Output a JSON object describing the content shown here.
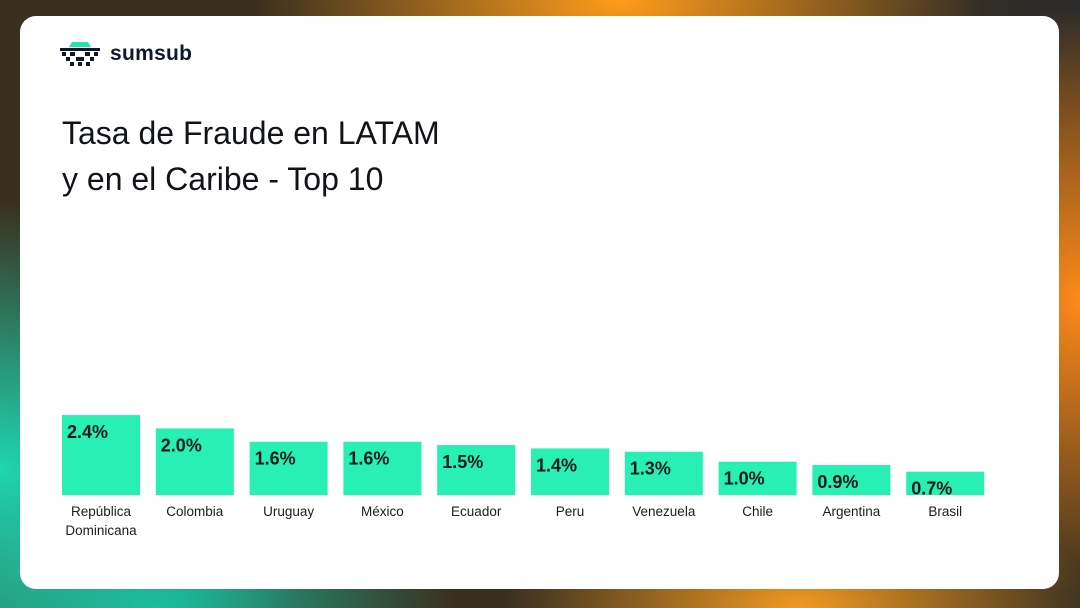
{
  "brand": {
    "name": "sumsub",
    "icon": "sumsub-logo-icon"
  },
  "title_lines": [
    "Tasa de Fraude en LATAM",
    "y en el Caribe - Top 10"
  ],
  "colors": {
    "bar": "#28f0b4",
    "text": "#101418"
  },
  "chart_data": {
    "type": "bar",
    "title": "Tasa de Fraude en LATAM y en el Caribe - Top 10",
    "categories": [
      "República Dominicana",
      "Colombia",
      "Uruguay",
      "México",
      "Ecuador",
      "Peru",
      "Venezuela",
      "Chile",
      "Argentina",
      "Brasil"
    ],
    "category_label_lines": [
      [
        "República",
        "Dominicana"
      ],
      [
        "Colombia"
      ],
      [
        "Uruguay"
      ],
      [
        "México"
      ],
      [
        "Ecuador"
      ],
      [
        "Peru"
      ],
      [
        "Venezuela"
      ],
      [
        "Chile"
      ],
      [
        "Argentina"
      ],
      [
        "Brasil"
      ]
    ],
    "values": [
      2.4,
      2.0,
      1.6,
      1.6,
      1.5,
      1.4,
      1.3,
      1.0,
      0.9,
      0.7
    ],
    "value_labels": [
      "2.4%",
      "2.0%",
      "1.6%",
      "1.6%",
      "1.5%",
      "1.4%",
      "1.3%",
      "1.0%",
      "0.9%",
      "0.7%"
    ],
    "unit": "%",
    "grid": false,
    "legend": "none"
  }
}
